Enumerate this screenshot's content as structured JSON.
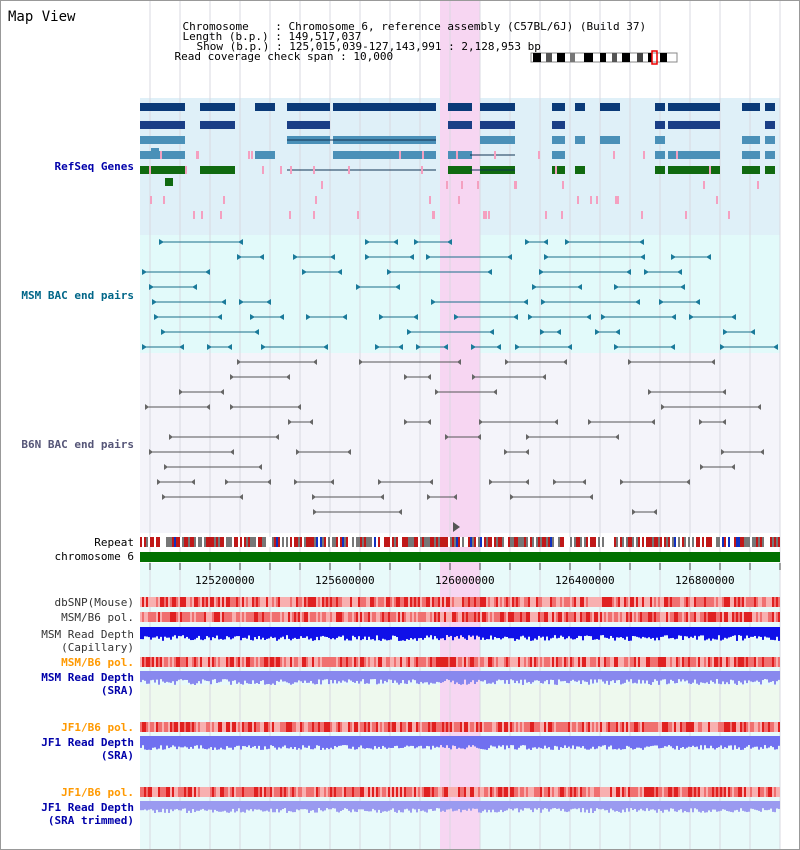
{
  "title": "Map View",
  "info": {
    "chromosome_key": "Chromosome",
    "chromosome_val": "Chromosome 6, reference assembly (C57BL/6J) (Build 37)",
    "length_key": "Length (b.p.)",
    "length_val": "149,517,037",
    "show_key": "Show (b.p.)",
    "show_val": "125,015,039-127,143,991 : 2,128,953 bp",
    "coverage_key": "Read coverage check span",
    "coverage_val": "10,000"
  },
  "tracks": {
    "refseq": "RefSeq Genes",
    "msm_bac": "MSM BAC end pairs",
    "b6n_bac": "B6N BAC end pairs",
    "repeat": "Repeat",
    "chromosome": "chromosome 6",
    "dbsnp": "dbSNP(Mouse)",
    "msm_b6_pol_1": "MSM/B6 pol.",
    "msm_depth_cap_1": "MSM Read Depth",
    "msm_depth_cap_2": "(Capillary)",
    "msm_b6_pol_2": "MSM/B6 pol.",
    "msm_depth_sra_1": "MSM Read Depth",
    "msm_depth_sra_2": "(SRA)",
    "jf1_b6_pol_1": "JF1/B6 pol.",
    "jf1_depth_sra_1": "JF1 Read Depth",
    "jf1_depth_sra_2": "(SRA)",
    "jf1_b6_pol_2": "JF1/B6 pol.",
    "jf1_depth_trim_1": "JF1 Read Depth",
    "jf1_depth_trim_2": "(SRA trimmed)"
  },
  "axis": {
    "ticks": [
      "125200000",
      "125600000",
      "126000000",
      "126400000",
      "126800000"
    ]
  },
  "colors": {
    "refseq_bg": "#dff0f8",
    "msm_bac_bg": "#e2fafa",
    "b6n_bg": "#f4f4fa",
    "highlight": "#f7d6f2",
    "chromosome": "#007000",
    "label_blue": "#0000aa",
    "label_teal": "#006688",
    "label_orange": "#ff9900"
  }
}
